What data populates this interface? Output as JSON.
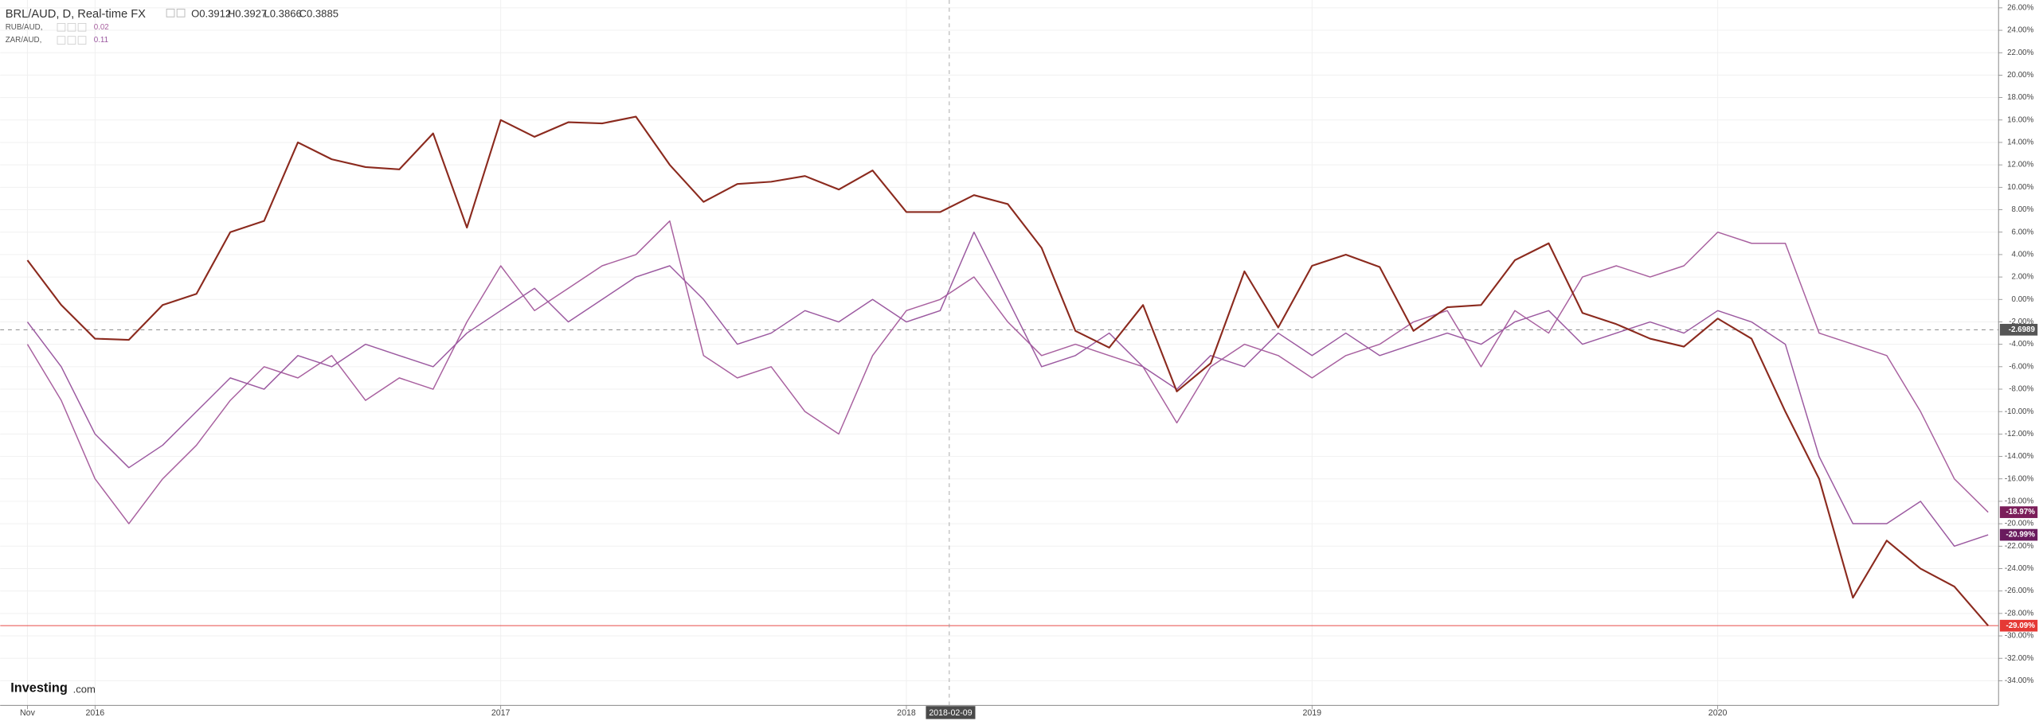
{
  "chart_data": {
    "type": "line",
    "title": "BRL/AUD, D, Real-time FX",
    "ohlc_labels": [
      "O0.3912",
      "H0.3927",
      "L0.3866",
      "C0.3885"
    ],
    "legend_values": [
      "0.02",
      "0.11"
    ],
    "watermark": {
      "brand": "Investing",
      "suffix": ".com"
    },
    "crosshair_label": "2018-02-09",
    "categories": [
      "Nov",
      null,
      "2016",
      null,
      null,
      null,
      null,
      null,
      null,
      null,
      null,
      null,
      null,
      null,
      "2017",
      null,
      null,
      null,
      null,
      null,
      null,
      null,
      null,
      null,
      null,
      null,
      "2018",
      null,
      null,
      null,
      null,
      null,
      null,
      null,
      null,
      null,
      null,
      null,
      "2019",
      null,
      null,
      null,
      null,
      null,
      null,
      null,
      null,
      null,
      null,
      null,
      "2020",
      null,
      null,
      null,
      null,
      null,
      null,
      null,
      null
    ],
    "series": [
      {
        "name": "BRL/AUD, D, Real-time FX",
        "color": "#8b2a1e",
        "values": [
          3.5,
          -0.5,
          -3.5,
          -3.6,
          -0.5,
          0.5,
          6,
          7,
          14,
          12.5,
          11.8,
          11.6,
          14.8,
          6.4,
          16,
          14.5,
          15.8,
          15.7,
          16.3,
          12,
          8.7,
          10.3,
          10.5,
          11,
          9.8,
          11.5,
          7.8,
          7.8,
          9.3,
          8.5,
          4.6,
          -2.8,
          -4.3,
          -0.5,
          -8.2,
          -5.7,
          2.5,
          -2.5,
          3,
          4,
          2.9,
          -2.8,
          -0.7,
          -0.5,
          3.5,
          5,
          -1.2,
          -2.2,
          -3.5,
          -4.2,
          -1.7,
          -3.5,
          -10,
          -16,
          -26.6,
          -21.5,
          -24,
          -25.6,
          -29.09
        ]
      },
      {
        "name": "RUB/AUD,",
        "color": "#a8609f",
        "values": [
          -4,
          -9,
          -16,
          -20,
          -16,
          -13,
          -9,
          -6,
          -7,
          -5,
          -9,
          -7,
          -8,
          -2,
          3,
          -1,
          1,
          3,
          4,
          7,
          -5,
          -7,
          -6,
          -10,
          -12,
          -5,
          -1,
          0,
          2,
          -2,
          -5,
          -4,
          -5,
          -6,
          -11,
          -6,
          -4,
          -5,
          -7,
          -5,
          -4,
          -2,
          -1,
          -6,
          -1,
          -3,
          2,
          3,
          2,
          3,
          6,
          5,
          5,
          -3,
          -4,
          -5,
          -10,
          -16,
          -18.97
        ]
      },
      {
        "name": "ZAR/AUD,",
        "color": "#9b59a0",
        "values": [
          -2,
          -6,
          -12,
          -15,
          -13,
          -10,
          -7,
          -8,
          -5,
          -6,
          -4,
          -5,
          -6,
          -3,
          -1,
          1,
          -2,
          0,
          2,
          3,
          0,
          -4,
          -3,
          -1,
          -2,
          0,
          -2,
          -1,
          6,
          0,
          -6,
          -5,
          -3,
          -6,
          -8,
          -5,
          -6,
          -3,
          -5,
          -3,
          -5,
          -4,
          -3,
          -4,
          -2,
          -1,
          -4,
          -3,
          -2,
          -3,
          -1,
          -2,
          -4,
          -14,
          -20,
          -20,
          -18,
          -22,
          -20.99
        ]
      }
    ],
    "ylim": [
      -36.2,
      26.7
    ],
    "yticks": [
      {
        "value": 26,
        "label": "26.00%"
      },
      {
        "value": 24,
        "label": "24.00%"
      },
      {
        "value": 22,
        "label": "22.00%"
      },
      {
        "value": 20,
        "label": "20.00%"
      },
      {
        "value": 18,
        "label": "18.00%"
      },
      {
        "value": 16,
        "label": "16.00%"
      },
      {
        "value": 14,
        "label": "14.00%"
      },
      {
        "value": 12,
        "label": "12.00%"
      },
      {
        "value": 10,
        "label": "10.00%"
      },
      {
        "value": 8,
        "label": "8.00%"
      },
      {
        "value": 6,
        "label": "6.00%"
      },
      {
        "value": 4,
        "label": "4.00%"
      },
      {
        "value": 2,
        "label": "2.00%"
      },
      {
        "value": 0,
        "label": "0.00%"
      },
      {
        "value": -2,
        "label": "-2.00%"
      },
      {
        "value": -4,
        "label": "-4.00%"
      },
      {
        "value": -6,
        "label": "-6.00%"
      },
      {
        "value": -8,
        "label": "-8.00%"
      },
      {
        "value": -10,
        "label": "-10.00%"
      },
      {
        "value": -12,
        "label": "-12.00%"
      },
      {
        "value": -14,
        "label": "-14.00%"
      },
      {
        "value": -16,
        "label": "-16.00%"
      },
      {
        "value": -18,
        "label": "-18.00%"
      },
      {
        "value": -20,
        "label": "-20.00%"
      },
      {
        "value": -22,
        "label": "-22.00%"
      },
      {
        "value": -24,
        "label": "-24.00%"
      },
      {
        "value": -26,
        "label": "-26.00%"
      },
      {
        "value": -28,
        "label": "-28.00%"
      },
      {
        "value": -30,
        "label": "-30.00%"
      },
      {
        "value": -32,
        "label": "-32.00%"
      },
      {
        "value": -34,
        "label": "-34.00%"
      }
    ],
    "grid": true,
    "annotations": [
      {
        "value": -2.6989,
        "label": "-2.6989",
        "color": "#555555",
        "line": "dashed"
      },
      {
        "value": -29.09,
        "label": "-29.09%",
        "color": "#e53935",
        "line": "solid"
      },
      {
        "value": -18.97,
        "label": "-18.97%",
        "color": "#7b1e5a"
      },
      {
        "value": -20.99,
        "label": "-20.99%",
        "color": "#6a1b5e"
      }
    ]
  }
}
